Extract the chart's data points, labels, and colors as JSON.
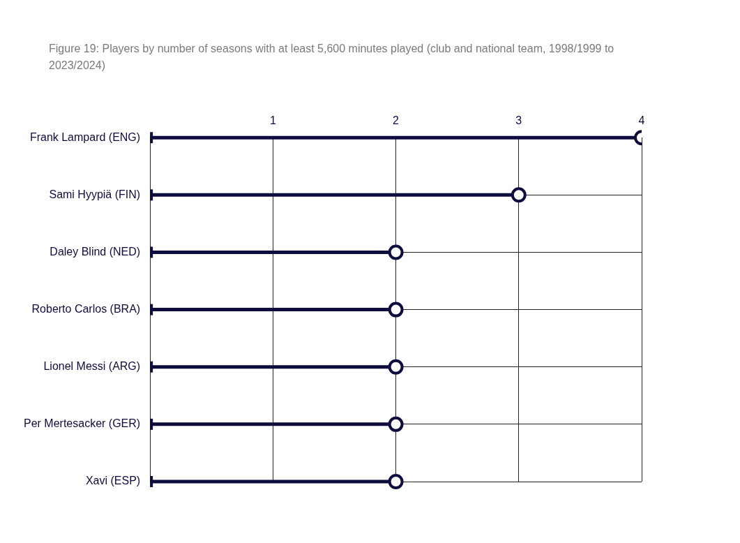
{
  "chart_data": {
    "type": "lollipop",
    "orientation": "horizontal",
    "title": "Figure 19:  Players by number of seasons with at least 5,600 minutes played (club and national team, 1998/1999 to 2023/2024)",
    "categories": [
      "Frank Lampard (ENG)",
      "Sami Hyypiä (FIN)",
      "Daley Blind (NED)",
      "Roberto Carlos (BRA)",
      "Lionel Messi (ARG)",
      "Per Mertesacker (GER)",
      "Xavi (ESP)"
    ],
    "values": [
      4,
      3,
      2,
      2,
      2,
      2,
      2
    ],
    "color": "#0e0c3c",
    "xlim": [
      0,
      4
    ],
    "xticks": [
      1,
      2,
      3,
      4
    ],
    "grid": true,
    "marker": "circle"
  }
}
